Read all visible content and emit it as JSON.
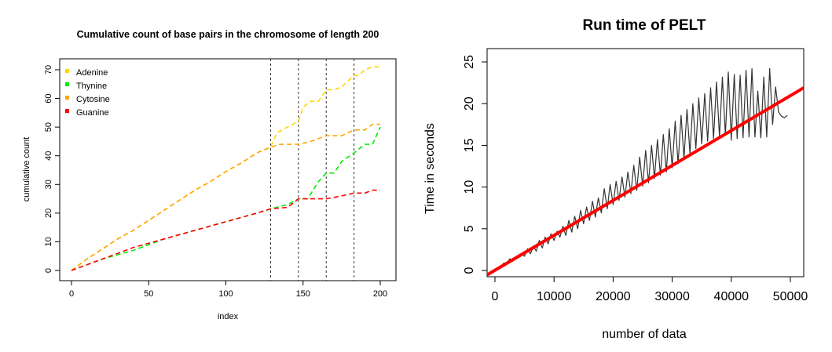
{
  "chart_data": [
    {
      "type": "line",
      "title": "Cumulative count of base pairs in the chromosome of length 200",
      "xlabel": "index",
      "ylabel": "cumulative count",
      "xlim": [
        0,
        200
      ],
      "ylim": [
        0,
        72
      ],
      "xticks": [
        0,
        50,
        100,
        150,
        200
      ],
      "yticks": [
        0,
        10,
        20,
        30,
        40,
        50,
        60,
        70
      ],
      "grid": false,
      "legend_position": "top-left",
      "line_style": "dashed",
      "changepoints": [
        129,
        147,
        165,
        183
      ],
      "series": [
        {
          "name": "Adenine",
          "color": "#ffd700",
          "x": [
            0,
            10,
            20,
            30,
            40,
            50,
            60,
            70,
            80,
            90,
            100,
            110,
            120,
            129,
            133,
            140,
            147,
            150,
            155,
            160,
            165,
            170,
            175,
            183,
            186,
            190,
            195,
            200
          ],
          "y": [
            0,
            4,
            7.5,
            11,
            14,
            17.5,
            21,
            24.5,
            28,
            31,
            34.5,
            37.5,
            41,
            43,
            48,
            50,
            52,
            57,
            59,
            59,
            63,
            63,
            64,
            68,
            68,
            70,
            71,
            71
          ]
        },
        {
          "name": "Thynine",
          "color": "#00ee00",
          "x": [
            0,
            20,
            40,
            60,
            80,
            100,
            120,
            129,
            140,
            147,
            153,
            160,
            165,
            170,
            175,
            183,
            190,
            195,
            200
          ],
          "y": [
            0,
            4,
            7,
            11,
            14,
            17,
            20,
            21.5,
            23,
            25,
            25,
            31,
            34,
            34,
            38,
            41,
            44,
            44,
            50
          ]
        },
        {
          "name": "Cytosine",
          "color": "#ffa500",
          "x": [
            0,
            10,
            20,
            30,
            40,
            50,
            60,
            70,
            80,
            90,
            100,
            110,
            120,
            129,
            135,
            147,
            155,
            165,
            175,
            183,
            190,
            195,
            200
          ],
          "y": [
            0,
            4,
            7.5,
            11,
            14,
            17.5,
            21,
            24.5,
            28,
            31,
            34.5,
            37.5,
            41,
            43,
            44,
            44,
            45,
            47,
            47,
            49,
            49,
            51,
            51
          ]
        },
        {
          "name": "Guanine",
          "color": "#ff0000",
          "x": [
            0,
            20,
            40,
            60,
            80,
            100,
            120,
            129,
            140,
            147,
            155,
            165,
            175,
            183,
            190,
            195,
            200
          ],
          "y": [
            0,
            4,
            8,
            11,
            14,
            17,
            20,
            21.5,
            22,
            25,
            25,
            25,
            26,
            27,
            27,
            28,
            28
          ]
        }
      ]
    },
    {
      "type": "line",
      "title": "Run time of PELT",
      "xlabel": "number of data",
      "ylabel": "Time in seconds",
      "xlim": [
        0,
        52000
      ],
      "ylim": [
        -0.8,
        25.5
      ],
      "xticks": [
        0,
        10000,
        20000,
        30000,
        40000,
        50000
      ],
      "yticks": [
        0,
        5,
        10,
        15,
        20,
        25
      ],
      "grid": false,
      "series": [
        {
          "color": "#333333",
          "x": [
            0,
            1000,
            1500,
            2000,
            2500,
            3000,
            3500,
            4000,
            4500,
            5000,
            5500,
            6000,
            6500,
            7000,
            7500,
            8000,
            8500,
            9000,
            9500,
            10000,
            10500,
            11000,
            11500,
            12000,
            12500,
            13000,
            13500,
            14000,
            14500,
            15000,
            15500,
            16000,
            16500,
            17000,
            17500,
            18000,
            18500,
            19000,
            19500,
            20000,
            20500,
            21000,
            21500,
            22000,
            22500,
            23000,
            23500,
            24000,
            24500,
            25000,
            25500,
            26000,
            26500,
            27000,
            27500,
            28000,
            28500,
            29000,
            29500,
            30000,
            30500,
            31000,
            31500,
            32000,
            32500,
            33000,
            33500,
            34000,
            34500,
            35000,
            35500,
            36000,
            36500,
            37000,
            37500,
            38000,
            38500,
            39000,
            39500,
            40000,
            40500,
            41000,
            41500,
            42000,
            42500,
            43000,
            43500,
            44000,
            44500,
            45000,
            45500,
            46000,
            46500,
            47000,
            47500,
            48000,
            48500,
            49000,
            49500
          ],
          "y": [
            0.1,
            0.4,
            0.9,
            0.8,
            1.4,
            1.1,
            1.6,
            1.5,
            2.0,
            1.7,
            2.6,
            2.0,
            2.9,
            2.3,
            3.6,
            2.7,
            4.0,
            3.2,
            4.4,
            3.6,
            4.7,
            4.0,
            5.3,
            4.2,
            6.0,
            4.6,
            6.5,
            5.0,
            7.2,
            5.6,
            7.6,
            6.0,
            8.3,
            6.4,
            8.7,
            6.9,
            9.8,
            7.4,
            10.3,
            7.9,
            10.7,
            8.4,
            11.2,
            8.8,
            11.8,
            9.2,
            12.6,
            9.6,
            13.6,
            10.1,
            14.4,
            10.5,
            15.0,
            11.0,
            15.7,
            11.4,
            16.3,
            11.8,
            17.0,
            12.3,
            17.9,
            12.8,
            18.6,
            13.4,
            19.3,
            14.0,
            20.0,
            14.6,
            20.7,
            15.2,
            21.2,
            15.5,
            21.9,
            15.8,
            22.6,
            16.0,
            23.2,
            16.2,
            23.8,
            15.6,
            23.5,
            15.8,
            23.4,
            15.9,
            24.0,
            16.0,
            24.2,
            16.0,
            21.5,
            15.9,
            23.2,
            16.0,
            24.2,
            17.5,
            22.0,
            19.0,
            18.5,
            18.3,
            18.6
          ]
        },
        {
          "color": "#ff0000",
          "x": [
            -1500,
            52500
          ],
          "y": [
            -0.6,
            22.0
          ]
        }
      ]
    }
  ]
}
